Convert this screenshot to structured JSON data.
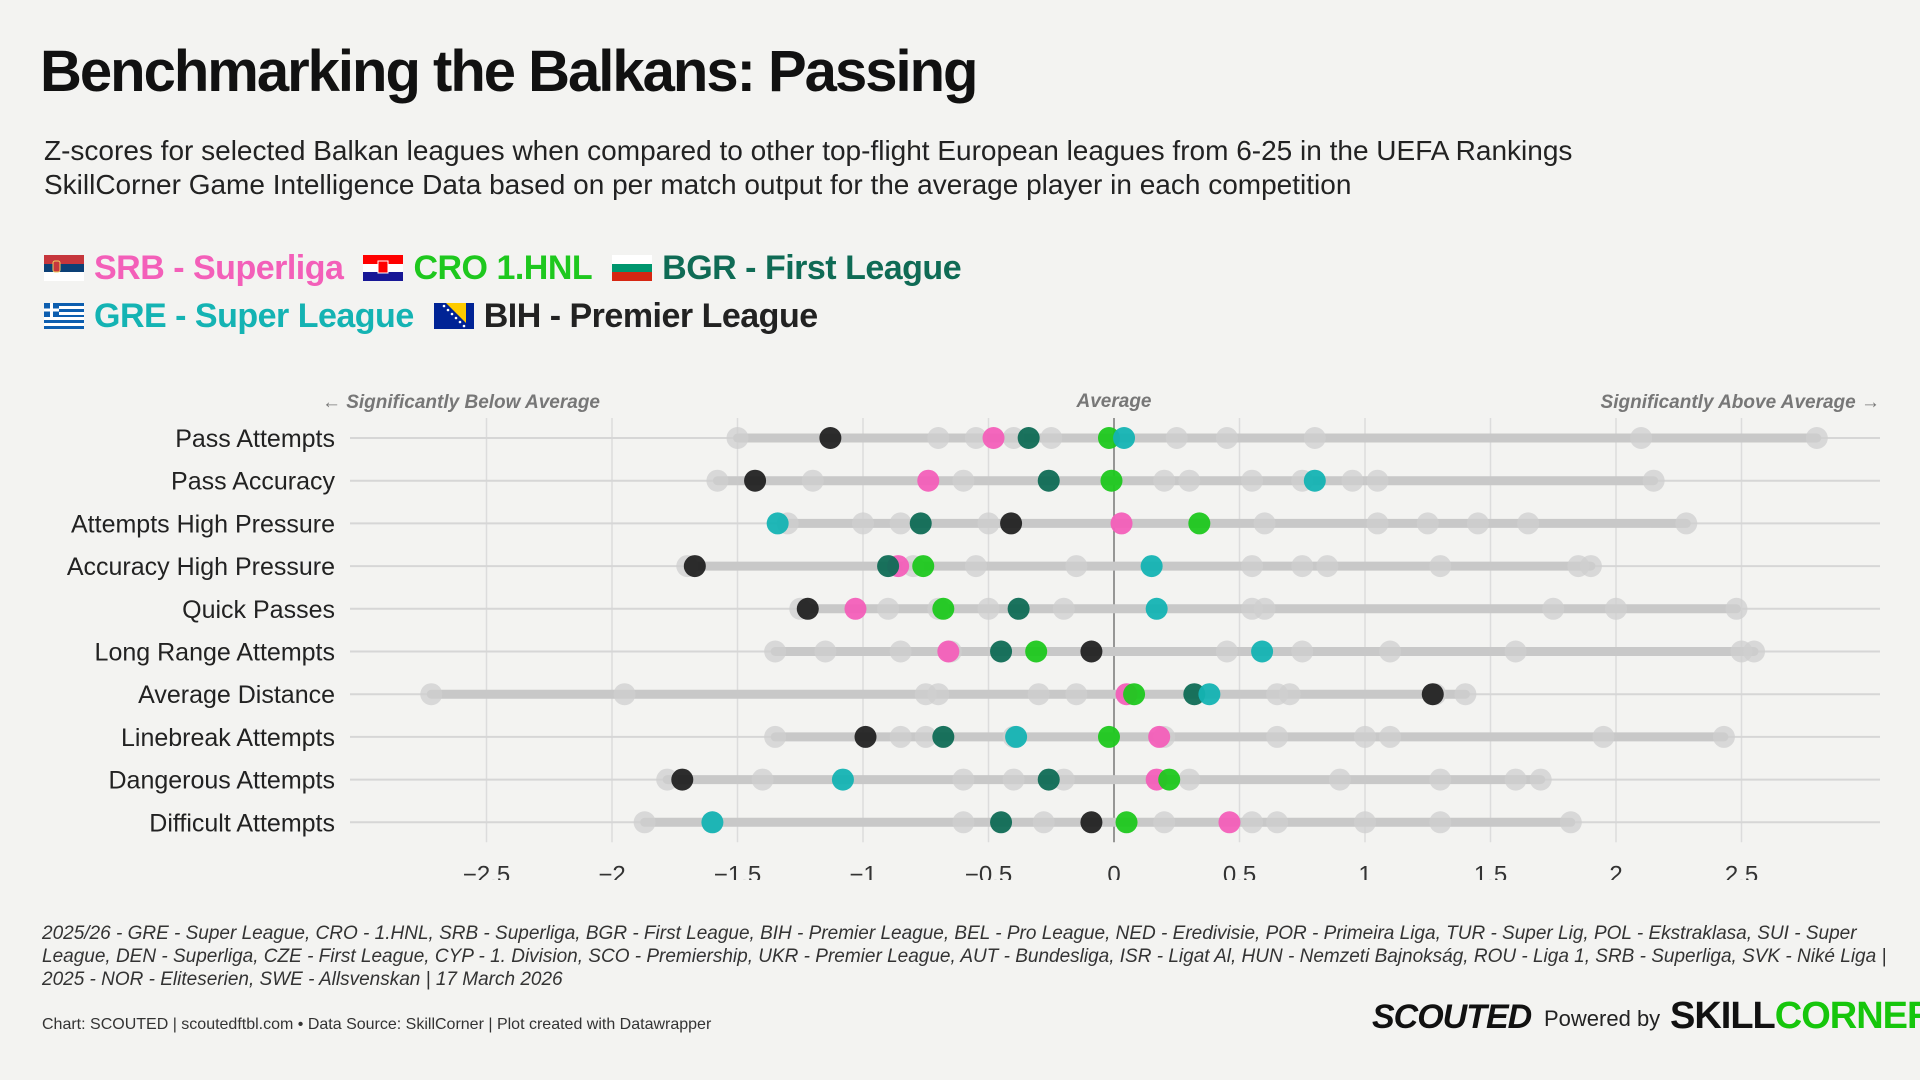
{
  "header": {
    "title": "Benchmarking the Balkans: Passing",
    "subtitle_line1": "Z-scores for selected Balkan leagues when compared to other top-flight European leagues from 6-25 in the UEFA Rankings",
    "subtitle_line2": "SkillCorner Game Intelligence Data based on per match output for the average player in each competition"
  },
  "legend": [
    {
      "label": "SRB - Superliga",
      "color": "#f35fb9",
      "flag": "rs-flag-icon"
    },
    {
      "label": "CRO 1.HNL",
      "color": "#1ec81e",
      "flag": "hr-flag-icon"
    },
    {
      "label": "BGR - First League",
      "color": "#0f6b55",
      "flag": "bg-flag-icon"
    },
    {
      "label": "GRE - Super League",
      "color": "#14b3b3",
      "flag": "gr-flag-icon"
    },
    {
      "label": "BIH - Premier League",
      "color": "#222222",
      "flag": "ba-flag-icon"
    }
  ],
  "chart_data": {
    "type": "dot",
    "title": "Benchmarking the Balkans: Passing",
    "x_ticks": [
      -2.5,
      -2,
      -1.5,
      -1,
      -0.5,
      0,
      0.5,
      1,
      1.5,
      2,
      2.5
    ],
    "x_tick_labels": [
      "−2.5",
      "−2",
      "−1.5",
      "−1",
      "−0.5",
      "0",
      "0.5",
      "1",
      "1.5",
      "2",
      "2.5"
    ],
    "xlim": [
      -2.75,
      3.05
    ],
    "annotations": {
      "left": "← Significantly Below Average",
      "center": "Average",
      "right": "Significantly Above Average →"
    },
    "categories": [
      "Pass Attempts",
      "Pass Accuracy",
      "Attempts High Pressure",
      "Accuracy High Pressure",
      "Quick Passes",
      "Long Range Attempts",
      "Average Distance",
      "Linebreak Attempts",
      "Dangerous Attempts",
      "Difficult Attempts"
    ],
    "ranges": [
      [
        -1.5,
        2.8
      ],
      [
        -1.58,
        2.15
      ],
      [
        -1.3,
        2.28
      ],
      [
        -1.7,
        1.9
      ],
      [
        -1.25,
        2.48
      ],
      [
        -1.35,
        2.55
      ],
      [
        -2.72,
        1.4
      ],
      [
        -1.35,
        2.43
      ],
      [
        -1.78,
        1.7
      ],
      [
        -1.87,
        1.82
      ]
    ],
    "series": [
      {
        "name": "SRB - Superliga",
        "color": "#f35fb9",
        "values": [
          -0.48,
          -0.74,
          0.03,
          -0.86,
          -1.03,
          -0.66,
          0.05,
          0.18,
          0.17,
          0.46
        ]
      },
      {
        "name": "CRO 1.HNL",
        "color": "#1ec81e",
        "values": [
          -0.02,
          -0.01,
          0.34,
          -0.76,
          -0.68,
          -0.31,
          0.08,
          -0.02,
          0.22,
          0.05
        ]
      },
      {
        "name": "BGR - First League",
        "color": "#0f6b55",
        "values": [
          -0.34,
          -0.26,
          -0.77,
          -0.9,
          -0.38,
          -0.45,
          0.32,
          -0.68,
          -0.26,
          -0.45
        ]
      },
      {
        "name": "GRE - Super League",
        "color": "#14b3b3",
        "values": [
          0.04,
          0.8,
          -1.34,
          0.15,
          0.17,
          0.59,
          0.38,
          -0.39,
          -1.08,
          -1.6
        ]
      },
      {
        "name": "BIH - Premier League",
        "color": "#222222",
        "values": [
          -1.13,
          -1.43,
          -0.41,
          -1.67,
          -1.22,
          -0.09,
          1.27,
          -0.99,
          -1.72,
          -0.09
        ]
      }
    ],
    "other_leagues": [
      [
        -1.5,
        -0.7,
        -0.55,
        -0.4,
        -0.25,
        0.25,
        0.45,
        0.8,
        2.1,
        2.8
      ],
      [
        -1.58,
        -1.2,
        -0.6,
        0.2,
        0.3,
        0.55,
        0.75,
        0.95,
        1.05,
        2.15
      ],
      [
        -1.3,
        -1.0,
        -0.85,
        -0.5,
        0.6,
        1.05,
        1.25,
        1.45,
        1.65,
        2.28
      ],
      [
        -1.7,
        -0.8,
        -0.55,
        -0.15,
        0.55,
        0.75,
        0.85,
        1.3,
        1.85,
        1.9
      ],
      [
        -1.25,
        -0.9,
        -0.7,
        -0.5,
        -0.2,
        0.55,
        0.6,
        1.75,
        2.0,
        2.48
      ],
      [
        -1.35,
        -1.15,
        -0.85,
        -0.65,
        0.45,
        0.75,
        1.1,
        1.6,
        2.55,
        2.5
      ],
      [
        -2.72,
        -1.95,
        -0.75,
        -0.7,
        -0.3,
        -0.15,
        0.65,
        0.7,
        1.28,
        1.4
      ],
      [
        -1.35,
        -0.85,
        -0.75,
        -0.4,
        0.2,
        0.65,
        1.0,
        1.1,
        1.95,
        2.43
      ],
      [
        -1.78,
        -1.4,
        -0.6,
        -0.4,
        -0.2,
        0.3,
        0.9,
        1.3,
        1.6,
        1.7
      ],
      [
        -1.87,
        -1.6,
        -0.6,
        -0.28,
        0.2,
        0.55,
        0.65,
        1.0,
        1.3,
        1.82
      ]
    ]
  },
  "notes": "2025/26 - GRE - Super League, CRO - 1.HNL, SRB - Superliga, BGR - First League, BIH - Premier League, BEL - Pro League, NED - Eredivisie, POR - Primeira Liga, TUR - Super Lig, POL - Ekstraklasa, SUI - Super League, DEN - Superliga, CZE - First League, CYP - 1. Division, SCO - Premiership, UKR - Premier League, AUT - Bundesliga, ISR - Ligat Al, HUN - Nemzeti Bajnokság, ROU - Liga 1, SRB - Superliga, SVK - Niké Liga | 2025 - NOR - Eliteserien, SWE - Allsvenskan | 17 March 2026",
  "footer": {
    "credit": "Chart: SCOUTED | scoutedftbl.com • Data Source: SkillCorner | Plot created with Datawrapper",
    "brand_scouted": "SCOUTED",
    "powered_by": "Powered by",
    "brand_skill": "SKILL",
    "brand_corner": "CORNER"
  }
}
